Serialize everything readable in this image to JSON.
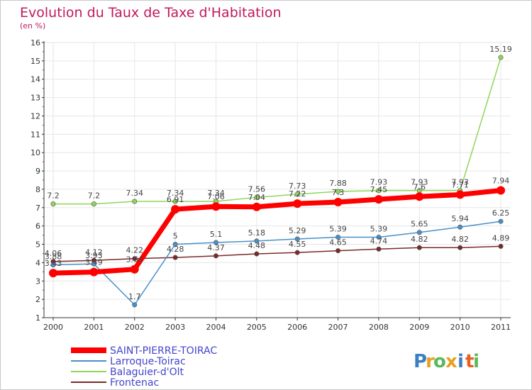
{
  "chart_data": {
    "type": "line",
    "title": "Evolution du Taux de Taxe d'Habitation",
    "subtitle": "(en %)",
    "xlabel": "",
    "ylabel": "",
    "x": [
      "2000",
      "2001",
      "2002",
      "2003",
      "2004",
      "2005",
      "2006",
      "2007",
      "2008",
      "2009",
      "2010",
      "2011"
    ],
    "ylim": [
      1,
      16
    ],
    "yticks": [
      "1",
      "2",
      "3",
      "4",
      "5",
      "6",
      "7",
      "8",
      "9",
      "10",
      "11",
      "12",
      "13",
      "14",
      "15",
      "16"
    ],
    "grid": true,
    "legend_position": "bottom-left",
    "series": [
      {
        "name": "SAINT-PIERRE-TOIRAC",
        "color": "#ff0000",
        "values": [
          3.43,
          3.49,
          3.64,
          6.91,
          7.06,
          7.04,
          7.22,
          7.3,
          7.45,
          7.6,
          7.71,
          7.94
        ],
        "labels": [
          "3.43",
          "3.49",
          "3.64",
          "6.91",
          "7.06",
          "7.04",
          "7.22",
          "7.3",
          "7.45",
          "7.6",
          "7.71",
          "7.94"
        ]
      },
      {
        "name": "Larroque-Toirac",
        "color": "#4a90c8",
        "values": [
          3.88,
          3.93,
          1.7,
          5.0,
          5.1,
          5.18,
          5.29,
          5.39,
          5.39,
          5.65,
          5.94,
          6.25
        ],
        "labels": [
          "3.88",
          "3.93",
          "1.7",
          "5",
          "5.1",
          "5.18",
          "5.29",
          "5.39",
          "5.39",
          "5.65",
          "5.94",
          "6.25"
        ]
      },
      {
        "name": "Balaguier-d'Olt",
        "color": "#8ed65a",
        "values": [
          7.2,
          7.2,
          7.34,
          7.34,
          7.34,
          7.56,
          7.73,
          7.88,
          7.93,
          7.93,
          7.93,
          15.19
        ],
        "labels": [
          "7.2",
          "7.2",
          "7.34",
          "7.34",
          "7.34",
          "7.56",
          "7.73",
          "7.88",
          "7.93",
          "7.93",
          "7.93",
          "15.19"
        ]
      },
      {
        "name": "Frontenac",
        "color": "#7a2a2a",
        "values": [
          4.06,
          4.12,
          4.22,
          4.28,
          4.37,
          4.48,
          4.55,
          4.65,
          4.74,
          4.82,
          4.82,
          4.89
        ],
        "labels": [
          "4.06",
          "4.12",
          "4.22",
          "4.28",
          "4.37",
          "4.48",
          "4.55",
          "4.65",
          "4.74",
          "4.82",
          "4.82",
          "4.89"
        ]
      }
    ]
  },
  "logo": {
    "letters": [
      "P",
      "r",
      "o",
      "x",
      "i",
      "t",
      "i"
    ],
    "colors": [
      "#3a7fc4",
      "#e8a020",
      "#5cb85c",
      "#e8a020",
      "#3a7fc4",
      "#e86020",
      "#5cb85c"
    ]
  },
  "colors": {
    "title": "#c2185b",
    "legend_text": "#4444cc",
    "grid": "#e6e6e6",
    "axis": "#333333"
  }
}
